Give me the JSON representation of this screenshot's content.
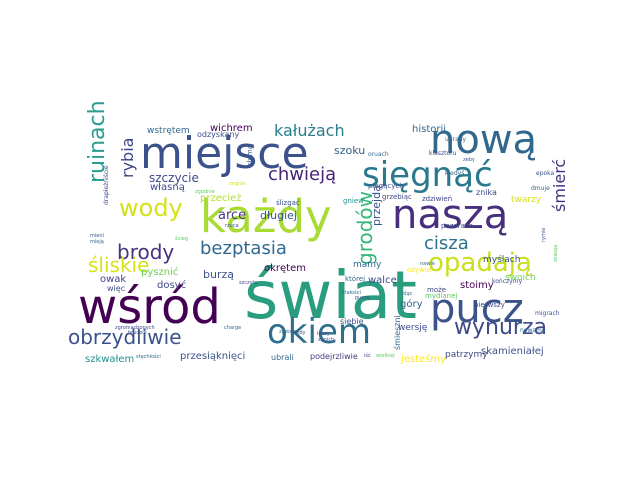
{
  "word_cloud": {
    "palette": {
      "dark_purple": "#440154",
      "indigo": "#3b528b",
      "teal": "#21918c",
      "green": "#5ec962",
      "yellow": "#d8d228"
    },
    "words": [
      {
        "text": "świat",
        "color": "#2a9d7f"
      },
      {
        "text": "wśród",
        "color": "#440154"
      },
      {
        "text": "każdy",
        "color": "#a8db34"
      },
      {
        "text": "miejsce",
        "color": "#3b528b"
      },
      {
        "text": "nową",
        "color": "#31688e"
      },
      {
        "text": "naszą",
        "color": "#472f7d"
      },
      {
        "text": "pucz",
        "color": "#3b528b"
      },
      {
        "text": "okiem",
        "color": "#2e6f8e"
      },
      {
        "text": "sięgnąć",
        "color": "#2a788e"
      },
      {
        "text": "opadają",
        "color": "#c8e020"
      },
      {
        "text": "wody",
        "color": "#d5e21a"
      },
      {
        "text": "ruinach",
        "color": "#2a9d8f"
      },
      {
        "text": "brody",
        "color": "#46327e"
      },
      {
        "text": "obrzydliwie",
        "color": "#3b528b"
      },
      {
        "text": "wynurza",
        "color": "#3e4989"
      },
      {
        "text": "chwieją",
        "color": "#482475"
      },
      {
        "text": "bezptasia",
        "color": "#31688e"
      },
      {
        "text": "śliskie",
        "color": "#d8e219"
      },
      {
        "text": "grodów",
        "color": "#35b779"
      },
      {
        "text": "cisza",
        "color": "#2c728e"
      },
      {
        "text": "śmierć",
        "color": "#46327e"
      },
      {
        "text": "rybia",
        "color": "#414487"
      },
      {
        "text": "kałużach",
        "color": "#287d8e"
      },
      {
        "text": "szczycie",
        "color": "#3e4a89"
      },
      {
        "text": "arce",
        "color": "#443983"
      },
      {
        "text": "długiej",
        "color": "#3b528b"
      },
      {
        "text": "burzą",
        "color": "#3b528b"
      },
      {
        "text": "okrętem",
        "color": "#440154"
      },
      {
        "text": "mamy",
        "color": "#31688e"
      },
      {
        "text": "walce",
        "color": "#3e4a89"
      },
      {
        "text": "szoku",
        "color": "#35608d"
      },
      {
        "text": "przejdą",
        "color": "#3b528b"
      },
      {
        "text": "historii",
        "color": "#31688e"
      },
      {
        "text": "wichrem",
        "color": "#440154"
      },
      {
        "text": "wstrętem",
        "color": "#31688e"
      },
      {
        "text": "odzyskany",
        "color": "#3b528b"
      },
      {
        "text": "własną",
        "color": "#3e4a89"
      },
      {
        "text": "przecież",
        "color": "#b5de2b"
      },
      {
        "text": "pysznić",
        "color": "#6ece58"
      },
      {
        "text": "owak",
        "color": "#414487"
      },
      {
        "text": "dosyć",
        "color": "#3e4989"
      },
      {
        "text": "szkwałem",
        "color": "#21918c"
      },
      {
        "text": "przesiąknięci",
        "color": "#3b528b"
      },
      {
        "text": "ubrali",
        "color": "#31688e"
      },
      {
        "text": "podejrzliwie",
        "color": "#443983"
      },
      {
        "text": "jesteśmy",
        "color": "#fde725"
      },
      {
        "text": "patrzymy",
        "color": "#3e4989"
      },
      {
        "text": "skamieniałej",
        "color": "#3b528b"
      },
      {
        "text": "stoimy",
        "color": "#440154"
      },
      {
        "text": "góry",
        "color": "#35608d"
      },
      {
        "text": "wersję",
        "color": "#3e4a89"
      },
      {
        "text": "śmieszni",
        "color": "#31688e"
      },
      {
        "text": "siebie",
        "color": "#3b528b"
      },
      {
        "text": "twarzy",
        "color": "#d2e21b"
      },
      {
        "text": "zdziwień",
        "color": "#414487"
      },
      {
        "text": "znika",
        "color": "#3e4989"
      },
      {
        "text": "gniew",
        "color": "#21918c"
      },
      {
        "text": "myślach",
        "color": "#3b528b"
      },
      {
        "text": "swoich",
        "color": "#6ece58"
      },
      {
        "text": "mydlanej",
        "color": "#5ec962"
      },
      {
        "text": "ożywia",
        "color": "#fde725"
      },
      {
        "text": "piegących",
        "color": "#3b528b"
      },
      {
        "text": "grzebiąc",
        "color": "#3e4989"
      },
      {
        "text": "pozorach",
        "color": "#3b528b"
      },
      {
        "text": "pierwszy",
        "color": "#3e4989"
      },
      {
        "text": "więc",
        "color": "#3b528b"
      },
      {
        "text": "może",
        "color": "#3e4989"
      },
      {
        "text": "której",
        "color": "#31688e"
      },
      {
        "text": "ślizgać",
        "color": "#3b528b"
      },
      {
        "text": "słoma",
        "color": "#35608d"
      },
      {
        "text": "drapieżniście",
        "color": "#3e4989"
      },
      {
        "text": "epoka",
        "color": "#3b528b"
      },
      {
        "text": "dmuje",
        "color": "#31688e"
      },
      {
        "text": "rymie",
        "color": "#3b528b"
      },
      {
        "text": "oswaja",
        "color": "#5ec962"
      },
      {
        "text": "migrach",
        "color": "#3b528b"
      },
      {
        "text": "nowamy",
        "color": "#31688e"
      },
      {
        "text": "kończymy",
        "color": "#3e4989"
      },
      {
        "text": "ubrany",
        "color": "#31688e"
      },
      {
        "text": "zeby",
        "color": "#3b528b"
      },
      {
        "text": "kiedyś",
        "color": "#31688e"
      },
      {
        "text": "klasztoru",
        "color": "#3e4989"
      },
      {
        "text": "oruach",
        "color": "#31688e"
      },
      {
        "text": "zegnie",
        "color": "#d8e219"
      },
      {
        "text": "zgodnie",
        "color": "#5ec962"
      },
      {
        "text": "mieni",
        "color": "#3b528b"
      },
      {
        "text": "mieją",
        "color": "#31688e"
      },
      {
        "text": "ścieg",
        "color": "#5ec962"
      },
      {
        "text": "rzuca",
        "color": "#3b528b"
      },
      {
        "text": "charge",
        "color": "#31688e"
      },
      {
        "text": "pucze",
        "color": "#3e4989"
      },
      {
        "text": "nawie",
        "color": "#31688e"
      },
      {
        "text": "szczytu",
        "color": "#3b528b"
      },
      {
        "text": "zgromadzonych",
        "color": "#3e4989"
      },
      {
        "text": "stęchłości",
        "color": "#31688e"
      },
      {
        "text": "brudzie",
        "color": "#3b528b"
      },
      {
        "text": "zastawi",
        "color": "#31688e"
      },
      {
        "text": "stałości",
        "color": "#31688e"
      },
      {
        "text": "zgnich",
        "color": "#3b528b"
      },
      {
        "text": "wielkiej",
        "color": "#5ec962"
      },
      {
        "text": "leczy",
        "color": "#3b528b"
      },
      {
        "text": "idąc",
        "color": "#31688e"
      },
      {
        "text": "kiedy",
        "color": "#3b528b"
      },
      {
        "text": "iść",
        "color": "#3e4989"
      }
    ]
  }
}
